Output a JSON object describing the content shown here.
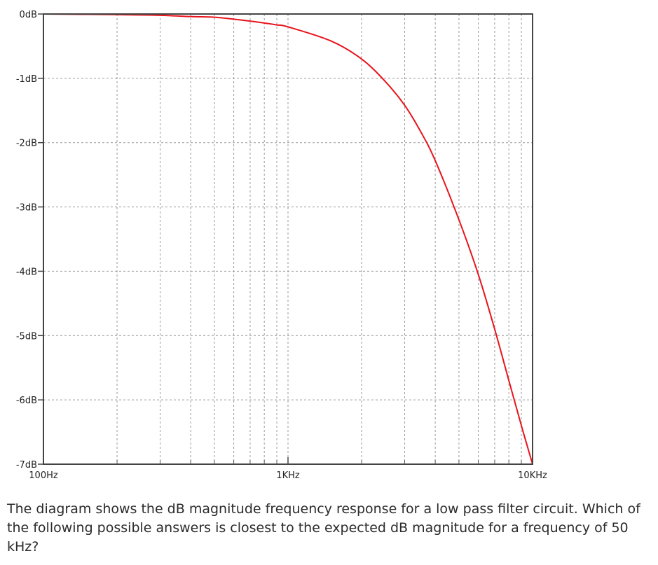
{
  "chart_data": {
    "type": "line",
    "title": "",
    "xlabel": "",
    "ylabel": "",
    "x_scale": "log",
    "xlim": [
      100,
      10000
    ],
    "ylim": [
      -7,
      0
    ],
    "grid": true,
    "x_ticks": [
      {
        "value": 100,
        "label": "100Hz"
      },
      {
        "value": 1000,
        "label": "1KHz"
      },
      {
        "value": 10000,
        "label": "10KHz"
      }
    ],
    "y_ticks": [
      {
        "value": 0,
        "label": "0dB"
      },
      {
        "value": -1,
        "label": "-1dB"
      },
      {
        "value": -2,
        "label": "-2dB"
      },
      {
        "value": -3,
        "label": "-3dB"
      },
      {
        "value": -4,
        "label": "-4dB"
      },
      {
        "value": -5,
        "label": "-5dB"
      },
      {
        "value": -6,
        "label": "-6dB"
      },
      {
        "value": -7,
        "label": "-7dB"
      }
    ],
    "series": [
      {
        "color": "#e8141c",
        "x": [
          100,
          200,
          300,
          400,
          500,
          600,
          700,
          800,
          900,
          1000,
          1500,
          2000,
          2500,
          3000,
          3500,
          4000,
          5000,
          6000,
          7000,
          8000,
          9000,
          10000
        ],
        "y": [
          0,
          -0.01,
          -0.02,
          -0.04,
          -0.05,
          -0.08,
          -0.11,
          -0.14,
          -0.17,
          -0.2,
          -0.42,
          -0.7,
          -1.05,
          -1.42,
          -1.84,
          -2.28,
          -3.2,
          -4.05,
          -4.9,
          -5.7,
          -6.4,
          -7.0
        ]
      }
    ]
  },
  "question": "The diagram shows the dB magnitude frequency response for a low pass filter circuit. Which of the following possible answers is closest to the expected dB magnitude for a frequency of 50 kHz?"
}
